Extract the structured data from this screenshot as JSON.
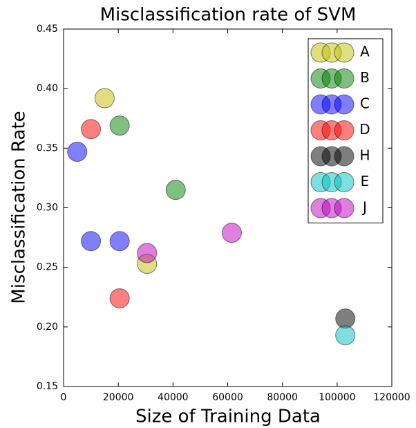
{
  "chart_data": {
    "type": "scatter",
    "title": "Misclassification rate of SVM",
    "xlabel": "Size of Training Data",
    "ylabel": "Misclassification Rate",
    "xlim": [
      0,
      120000
    ],
    "xticks": [
      0,
      20000,
      40000,
      60000,
      80000,
      100000,
      120000
    ],
    "ylim": [
      0.15,
      0.45
    ],
    "yticks": [
      0.15,
      {
        "value": 0.2,
        "label": "0.20"
      },
      0.25,
      {
        "value": 0.3,
        "label": "0.30"
      },
      0.35,
      {
        "value": 0.4,
        "label": "0.40"
      },
      0.45
    ],
    "legend": "upper right",
    "series": [
      {
        "name": "A",
        "color": "#bfbf00",
        "x": [
          15000,
          30500
        ],
        "values": [
          0.392,
          0.253
        ]
      },
      {
        "name": "B",
        "color": "#008000",
        "x": [
          20500,
          41000
        ],
        "values": [
          0.369,
          0.315
        ]
      },
      {
        "name": "C",
        "color": "#0000ff",
        "x": [
          5000,
          10000,
          20500
        ],
        "values": [
          0.347,
          0.272,
          0.272
        ]
      },
      {
        "name": "D",
        "color": "#ff0000",
        "x": [
          10000,
          20500
        ],
        "values": [
          0.366,
          0.224
        ]
      },
      {
        "name": "H",
        "color": "#000000",
        "x": [
          103000
        ],
        "values": [
          0.207
        ]
      },
      {
        "name": "E",
        "color": "#00bfbf",
        "x": [
          103000
        ],
        "values": [
          0.193
        ]
      },
      {
        "name": "J",
        "color": "#bf00bf",
        "x": [
          30500,
          61500
        ],
        "values": [
          0.262,
          0.279
        ]
      }
    ]
  }
}
